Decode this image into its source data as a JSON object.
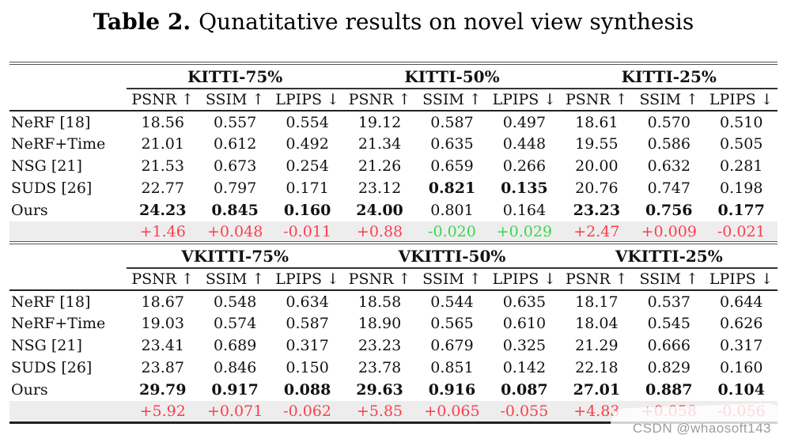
{
  "title": {
    "label": "Table 2.",
    "text": "Qunatitative results on novel view synthesis"
  },
  "metrics": [
    "PSNR ↑",
    "SSIM ↑",
    "LPIPS ↓"
  ],
  "colors": {
    "delta_positive_red": "#fb3e4d",
    "delta_negative_green": "#3cd54d",
    "delta_row_background": "#ededed",
    "rule_color": "#222222"
  },
  "watermark": {
    "text": "CSDN @whaosoft143"
  },
  "tables": [
    {
      "groups": [
        "KITTI-75%",
        "KITTI-50%",
        "KITTI-25%"
      ],
      "rows": [
        {
          "label": "NeRF [18]",
          "values": [
            "18.56",
            "0.557",
            "0.554",
            "19.12",
            "0.587",
            "0.497",
            "18.61",
            "0.570",
            "0.510"
          ],
          "styles": [
            "",
            "",
            "",
            "",
            "",
            "",
            "",
            "",
            ""
          ]
        },
        {
          "label": "NeRF+Time",
          "values": [
            "21.01",
            "0.612",
            "0.492",
            "21.34",
            "0.635",
            "0.448",
            "19.55",
            "0.586",
            "0.505"
          ],
          "styles": [
            "",
            "",
            "",
            "",
            "",
            "",
            "",
            "",
            ""
          ]
        },
        {
          "label": "NSG [21]",
          "values": [
            "21.53",
            "0.673",
            "0.254",
            "21.26",
            "0.659",
            "0.266",
            "20.00",
            "0.632",
            "0.281"
          ],
          "styles": [
            "",
            "",
            "",
            "",
            "",
            "",
            "",
            "",
            ""
          ]
        },
        {
          "label": "SUDS [26]",
          "values": [
            "22.77",
            "0.797",
            "0.171",
            "23.12",
            "0.821",
            "0.135",
            "20.76",
            "0.747",
            "0.198"
          ],
          "styles": [
            "",
            "",
            "",
            "",
            "b",
            "b",
            "",
            "",
            ""
          ]
        },
        {
          "label": "Ours",
          "values": [
            "24.23",
            "0.845",
            "0.160",
            "24.00",
            "0.801",
            "0.164",
            "23.23",
            "0.756",
            "0.177"
          ],
          "styles": [
            "b",
            "b",
            "b",
            "b",
            "",
            "",
            "b",
            "b",
            "b"
          ]
        }
      ],
      "delta": {
        "values": [
          "+1.46",
          "+0.048",
          "-0.011",
          "+0.88",
          "-0.020",
          "+0.029",
          "+2.47",
          "+0.009",
          "-0.021"
        ],
        "styles": [
          "red",
          "red",
          "red",
          "red",
          "green",
          "green",
          "red",
          "red",
          "red"
        ]
      }
    },
    {
      "groups": [
        "VKITTI-75%",
        "VKITTI-50%",
        "VKITTI-25%"
      ],
      "rows": [
        {
          "label": "NeRF [18]",
          "values": [
            "18.67",
            "0.548",
            "0.634",
            "18.58",
            "0.544",
            "0.635",
            "18.17",
            "0.537",
            "0.644"
          ],
          "styles": [
            "",
            "",
            "",
            "",
            "",
            "",
            "",
            "",
            ""
          ]
        },
        {
          "label": "NeRF+Time",
          "values": [
            "19.03",
            "0.574",
            "0.587",
            "18.90",
            "0.565",
            "0.610",
            "18.04",
            "0.545",
            "0.626"
          ],
          "styles": [
            "",
            "",
            "",
            "",
            "",
            "",
            "",
            "",
            ""
          ]
        },
        {
          "label": "NSG [21]",
          "values": [
            "23.41",
            "0.689",
            "0.317",
            "23.23",
            "0.679",
            "0.325",
            "21.29",
            "0.666",
            "0.317"
          ],
          "styles": [
            "",
            "",
            "",
            "",
            "",
            "",
            "",
            "",
            ""
          ]
        },
        {
          "label": "SUDS [26]",
          "values": [
            "23.87",
            "0.846",
            "0.150",
            "23.78",
            "0.851",
            "0.142",
            "22.18",
            "0.829",
            "0.160"
          ],
          "styles": [
            "",
            "",
            "",
            "",
            "",
            "",
            "",
            "",
            ""
          ]
        },
        {
          "label": "Ours",
          "values": [
            "29.79",
            "0.917",
            "0.088",
            "29.63",
            "0.916",
            "0.087",
            "27.01",
            "0.887",
            "0.104"
          ],
          "styles": [
            "b",
            "b",
            "b",
            "b",
            "b",
            "b",
            "b",
            "b",
            "b"
          ]
        }
      ],
      "delta": {
        "values": [
          "+5.92",
          "+0.071",
          "-0.062",
          "+5.85",
          "+0.065",
          "-0.055",
          "+4.83",
          "+0.058",
          "-0.056"
        ],
        "styles": [
          "red",
          "red",
          "red",
          "red",
          "red",
          "red",
          "red",
          "red",
          "red"
        ]
      }
    }
  ]
}
